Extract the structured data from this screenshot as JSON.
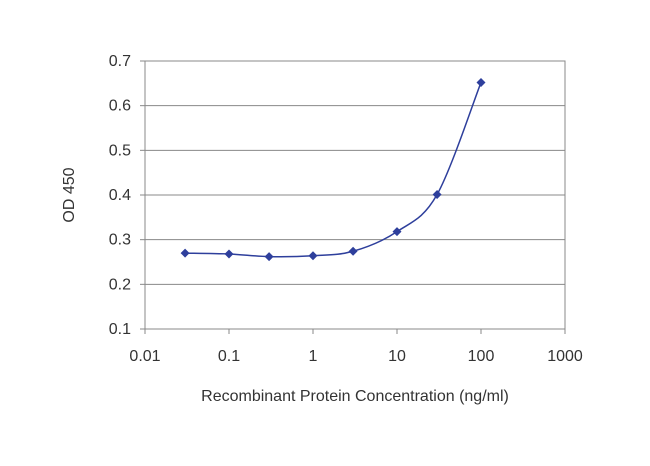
{
  "chart_data": {
    "type": "line",
    "title": "",
    "xlabel": "Recombinant Protein Concentration (ng/ml)",
    "ylabel": "OD 450",
    "x_scale": "log",
    "xlim": [
      0.01,
      1000
    ],
    "ylim": [
      0.1,
      0.7
    ],
    "x_ticks": [
      "0.01",
      "0.1",
      "1",
      "10",
      "100",
      "1000"
    ],
    "y_ticks": [
      "0.1",
      "0.2",
      "0.3",
      "0.4",
      "0.5",
      "0.6",
      "0.7"
    ],
    "grid": "horizontal",
    "legend": "none",
    "series": [
      {
        "color": "#2e3f9c",
        "x": [
          0.03,
          0.1,
          0.3,
          1,
          3,
          10,
          30,
          100
        ],
        "y": [
          0.27,
          0.268,
          0.262,
          0.264,
          0.274,
          0.318,
          0.401,
          0.652
        ]
      }
    ]
  }
}
